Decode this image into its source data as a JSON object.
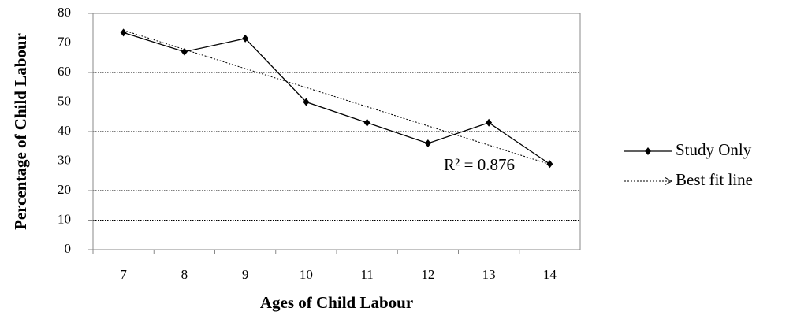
{
  "chart_data": {
    "type": "line",
    "x_label": "Ages of Child Labour",
    "y_label": "Percentage of Child Labour",
    "categories": [
      "7",
      "8",
      "9",
      "10",
      "11",
      "12",
      "13",
      "14"
    ],
    "series": [
      {
        "name": "Study Only",
        "color": "#000000",
        "values": [
          73.5,
          67,
          71.5,
          50,
          43,
          36,
          43,
          29
        ]
      },
      {
        "name": "Best fit line",
        "color": "#000000",
        "values": [
          74.3,
          67.8,
          61.3,
          54.9,
          48.4,
          41.9,
          35.4,
          28.9
        ]
      }
    ],
    "annotation": "R² = 0.876",
    "ylim": [
      0,
      80
    ],
    "yticks": [
      0,
      10,
      20,
      30,
      40,
      50,
      60,
      70,
      80
    ],
    "grid": true,
    "legend": "right"
  }
}
